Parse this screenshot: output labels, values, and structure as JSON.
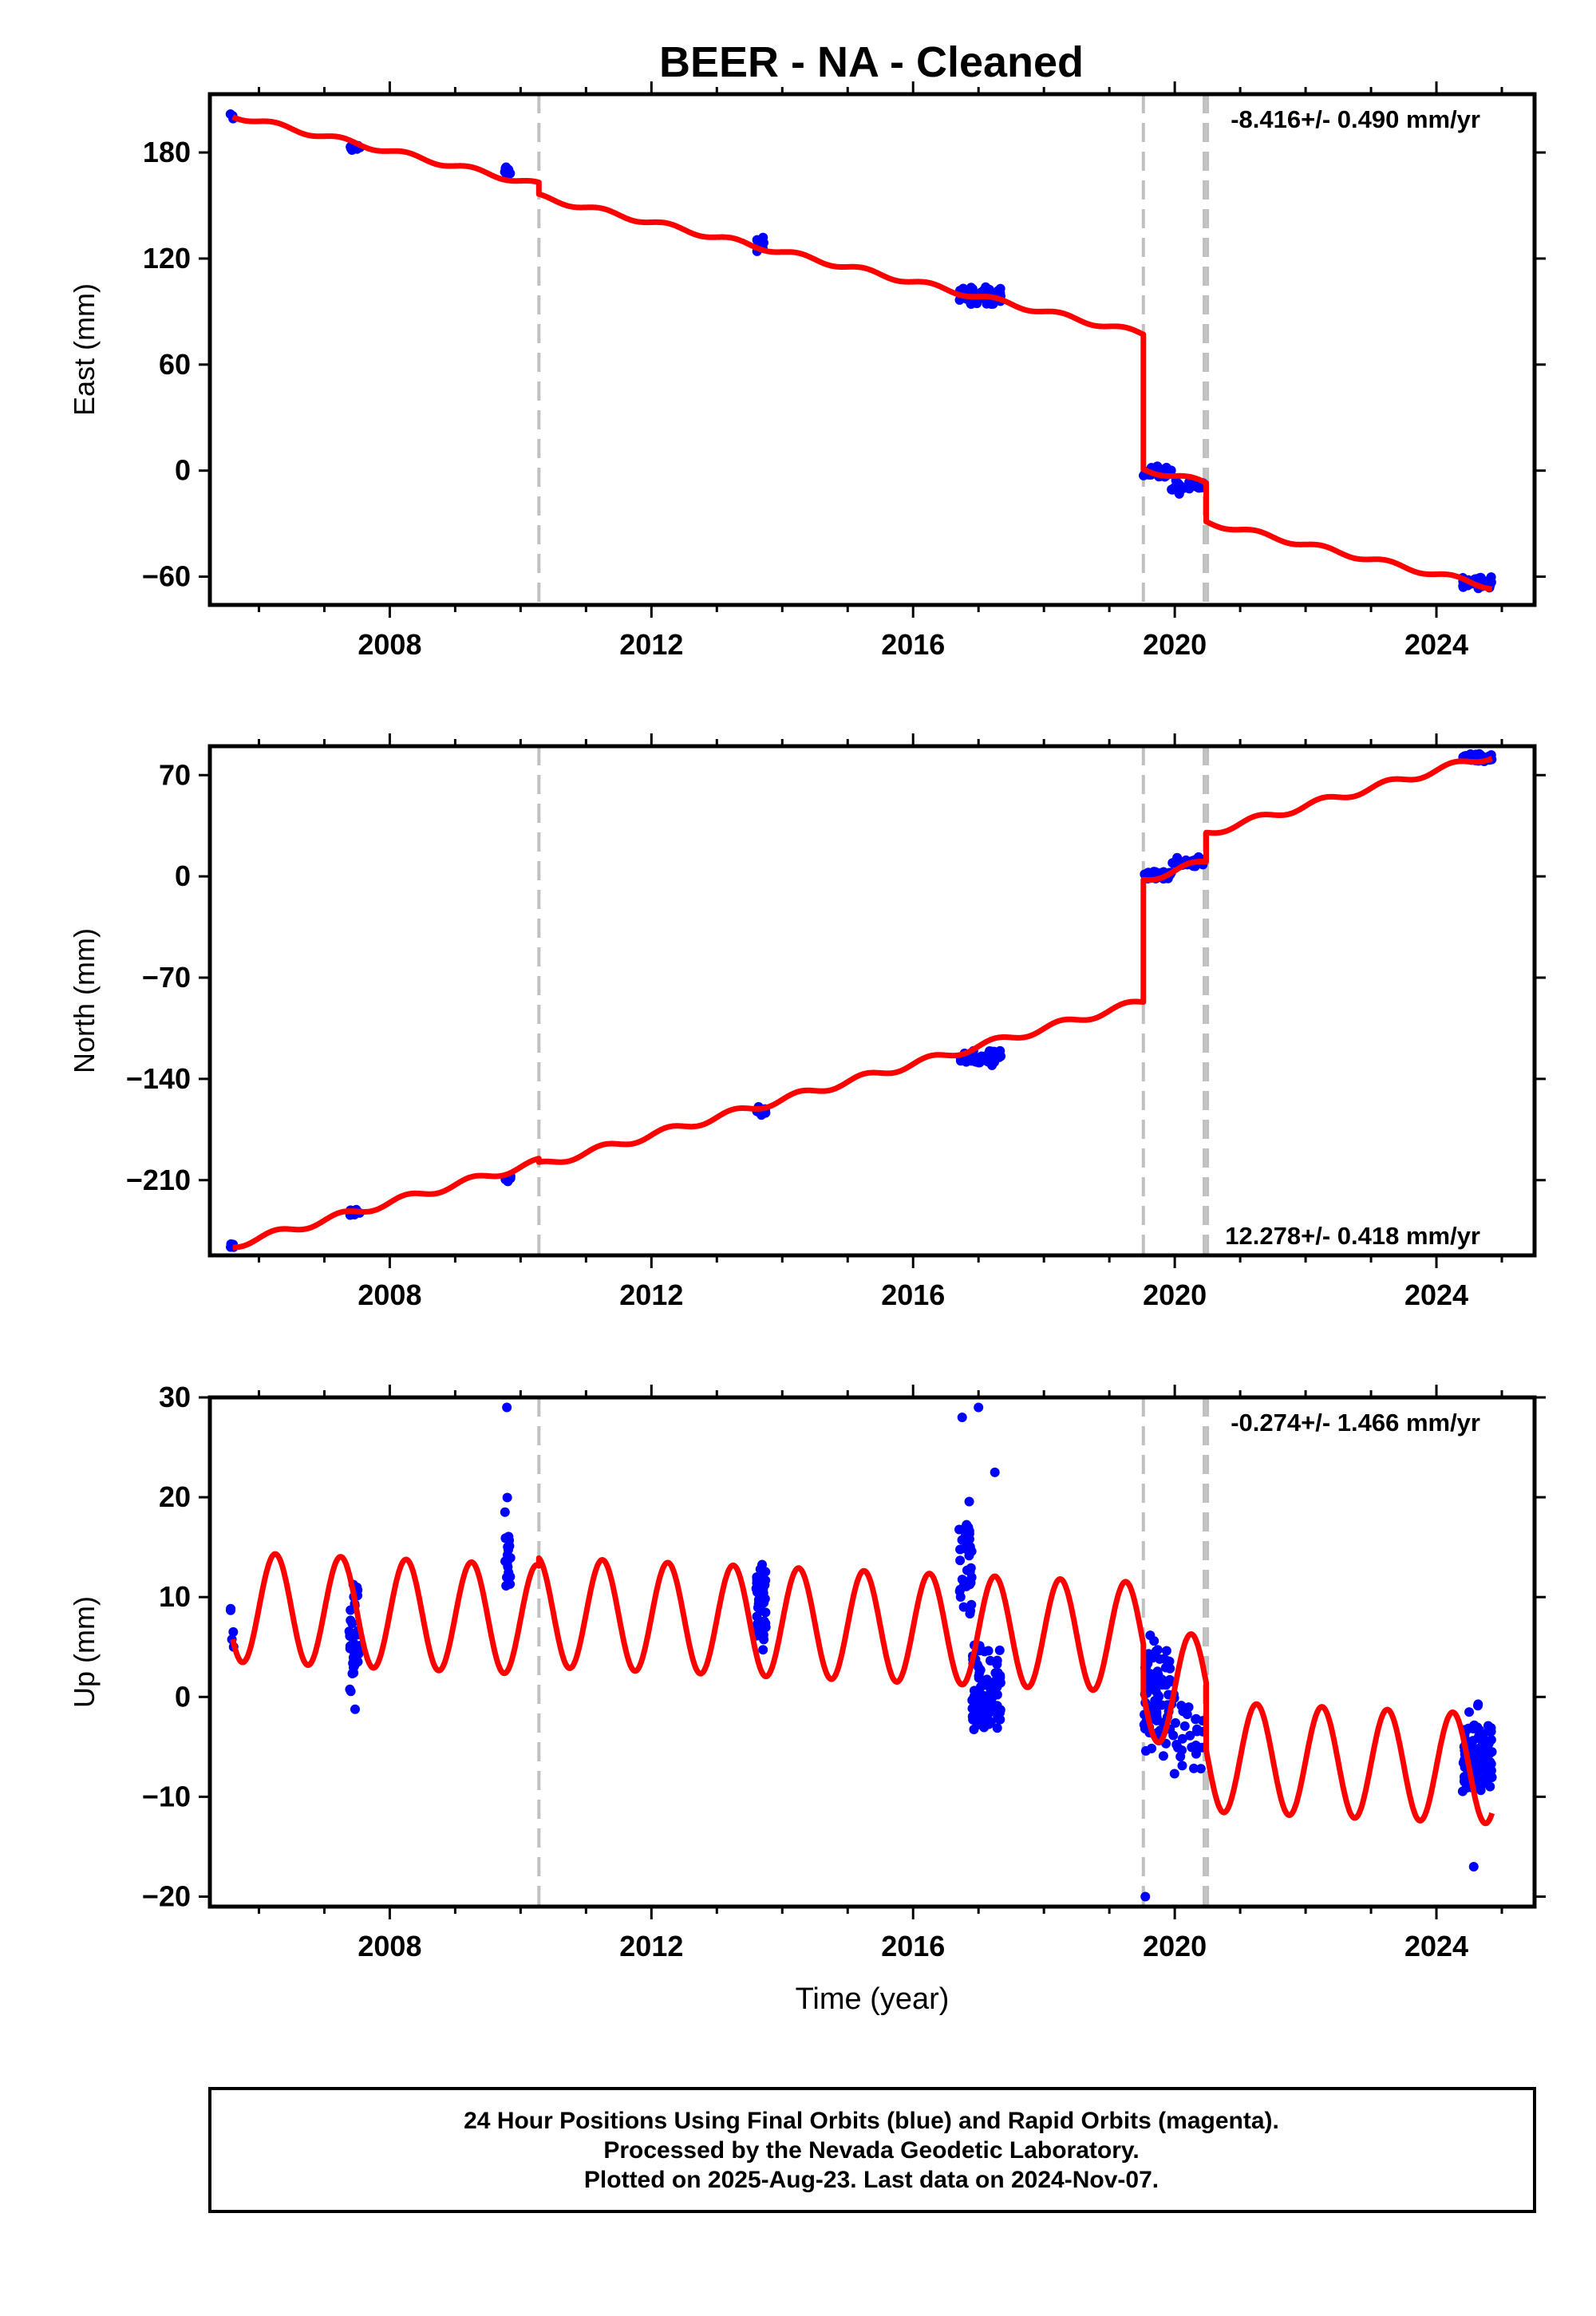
{
  "title": "BEER  - NA - Cleaned",
  "footer": {
    "line1": "24 Hour Positions Using Final Orbits (blue) and Rapid Orbits (magenta).",
    "line2": "Processed by the Nevada Geodetic Laboratory.",
    "line3": "Plotted on 2025-Aug-23. Last data on 2024-Nov-07."
  },
  "colors": {
    "data_points": "#0000ff",
    "model_line": "#ff0000",
    "event_lines": "#c0c0c0",
    "frame": "#000000"
  },
  "chart_data": [
    {
      "type": "scatter",
      "panel": "east",
      "ylabel": "East (mm)",
      "xlabel": "",
      "rate_label": "-8.416+/- 0.490 mm/yr",
      "rate_position": "top-right",
      "xlim": [
        2005.25,
        2025.5
      ],
      "ylim": [
        -76,
        213
      ],
      "yticks": [
        -60,
        0,
        60,
        120,
        180
      ],
      "xticks": [
        2008,
        2012,
        2016,
        2020,
        2024
      ],
      "event_lines": [
        2010.28,
        2019.52,
        2020.45,
        2020.5
      ],
      "model": {
        "segments": [
          {
            "t0": 2005.6,
            "t1": 2010.28,
            "y0": 201,
            "rate": -8.416
          },
          {
            "t0": 2010.28,
            "t1": 2019.52,
            "y0": 155,
            "rate": -8.416
          },
          {
            "t0": 2019.52,
            "t1": 2020.48,
            "y0": 1,
            "rate": -8.416
          },
          {
            "t0": 2020.48,
            "t1": 2024.85,
            "y0": -29,
            "rate": -8.416
          }
        ],
        "amplitude": 1.5,
        "phase": 0.0
      },
      "points": {
        "clusters": [
          {
            "t0": 2005.55,
            "t1": 2005.62,
            "mean": 200,
            "spread": 1.5,
            "n": 5
          },
          {
            "t0": 2007.38,
            "t1": 2007.55,
            "mean": 183,
            "spread": 2,
            "n": 14
          },
          {
            "t0": 2009.75,
            "t1": 2009.85,
            "mean": 169,
            "spread": 3,
            "n": 10
          },
          {
            "t0": 2013.6,
            "t1": 2013.75,
            "mean": 128,
            "spread": 3,
            "n": 16
          },
          {
            "t0": 2016.7,
            "t1": 2017.35,
            "mean": 99,
            "spread": 4,
            "n": 60
          },
          {
            "t0": 2019.52,
            "t1": 2019.95,
            "mean": -1,
            "spread": 2.5,
            "n": 45
          },
          {
            "t0": 2019.95,
            "t1": 2020.45,
            "mean": -9,
            "spread": 3,
            "n": 30
          },
          {
            "t0": 2024.4,
            "t1": 2024.85,
            "mean": -63,
            "spread": 2.5,
            "n": 70
          }
        ]
      }
    },
    {
      "type": "scatter",
      "panel": "north",
      "ylabel": "North (mm)",
      "xlabel": "",
      "rate_label": "12.278+/- 0.418 mm/yr",
      "rate_position": "bottom-right",
      "xlim": [
        2005.25,
        2025.5
      ],
      "ylim": [
        -262,
        90
      ],
      "yticks": [
        -210,
        -140,
        -70,
        0,
        70
      ],
      "xticks": [
        2008,
        2012,
        2016,
        2020,
        2024
      ],
      "event_lines": [
        2010.28,
        2019.52,
        2020.45,
        2020.5
      ],
      "model": {
        "segments": [
          {
            "t0": 2005.6,
            "t1": 2010.28,
            "y0": -255,
            "rate": 12.278
          },
          {
            "t0": 2010.28,
            "t1": 2019.52,
            "y0": -200,
            "rate": 12.278
          },
          {
            "t0": 2019.52,
            "t1": 2020.48,
            "y0": -2,
            "rate": 12.278
          },
          {
            "t0": 2020.48,
            "t1": 2024.85,
            "y0": 30,
            "rate": 12.278
          }
        ],
        "amplitude": 2.5,
        "phase": 0.0
      },
      "points": {
        "clusters": [
          {
            "t0": 2005.55,
            "t1": 2005.62,
            "mean": -255,
            "spread": 1.5,
            "n": 5
          },
          {
            "t0": 2007.38,
            "t1": 2007.55,
            "mean": -232,
            "spread": 2,
            "n": 14
          },
          {
            "t0": 2009.75,
            "t1": 2009.85,
            "mean": -209,
            "spread": 2,
            "n": 10
          },
          {
            "t0": 2013.6,
            "t1": 2013.75,
            "mean": -162,
            "spread": 2,
            "n": 16
          },
          {
            "t0": 2016.7,
            "t1": 2017.35,
            "mean": -125,
            "spread": 4,
            "n": 60
          },
          {
            "t0": 2019.52,
            "t1": 2019.95,
            "mean": 1,
            "spread": 2,
            "n": 45
          },
          {
            "t0": 2019.95,
            "t1": 2020.45,
            "mean": 10,
            "spread": 2.5,
            "n": 30
          },
          {
            "t0": 2024.4,
            "t1": 2024.85,
            "mean": 82,
            "spread": 2,
            "n": 70
          }
        ]
      }
    },
    {
      "type": "scatter",
      "panel": "up",
      "ylabel": "Up (mm)",
      "xlabel": "Time (year)",
      "rate_label": "-0.274+/- 1.466 mm/yr",
      "rate_position": "top-right",
      "xlim": [
        2005.25,
        2025.5
      ],
      "ylim": [
        -21,
        30
      ],
      "yticks": [
        -20,
        -10,
        0,
        10,
        20,
        30
      ],
      "xticks": [
        2008,
        2012,
        2016,
        2020,
        2024
      ],
      "event_lines": [
        2010.28,
        2019.52,
        2020.45,
        2020.5
      ],
      "model": {
        "segments": [
          {
            "t0": 2005.6,
            "t1": 2010.28,
            "y0": 9,
            "rate": -0.274
          },
          {
            "t0": 2010.28,
            "t1": 2019.52,
            "y0": 8.5,
            "rate": -0.274
          },
          {
            "t0": 2019.52,
            "t1": 2020.48,
            "y0": 1,
            "rate": -0.274
          },
          {
            "t0": 2020.48,
            "t1": 2024.85,
            "y0": -6,
            "rate": -0.274
          }
        ],
        "amplitude": 5.5,
        "phase": 0.0
      },
      "points": {
        "clusters": [
          {
            "t0": 2005.55,
            "t1": 2005.62,
            "mean": 10,
            "spread": 4,
            "n": 5
          },
          {
            "t0": 2007.38,
            "t1": 2007.55,
            "mean": 5,
            "spread": 5,
            "n": 40
          },
          {
            "t0": 2009.75,
            "t1": 2009.85,
            "mean": 14,
            "spread": 4,
            "n": 18
          },
          {
            "t0": 2013.6,
            "t1": 2013.75,
            "mean": 9,
            "spread": 4,
            "n": 40
          },
          {
            "t0": 2016.7,
            "t1": 2016.9,
            "mean": 13,
            "spread": 5,
            "n": 35
          },
          {
            "t0": 2016.9,
            "t1": 2017.35,
            "mean": 0,
            "spread": 4,
            "n": 90
          },
          {
            "t0": 2019.52,
            "t1": 2019.95,
            "mean": 0,
            "spread": 5,
            "n": 90
          },
          {
            "t0": 2019.95,
            "t1": 2020.45,
            "mean": -4,
            "spread": 4,
            "n": 30
          },
          {
            "t0": 2024.4,
            "t1": 2024.85,
            "mean": -6,
            "spread": 3.5,
            "n": 120
          }
        ],
        "extremes": [
          {
            "t": 2009.79,
            "y": 29
          },
          {
            "t": 2016.75,
            "y": 28
          },
          {
            "t": 2017.0,
            "y": 29
          },
          {
            "t": 2017.25,
            "y": 22.5
          },
          {
            "t": 2019.55,
            "y": -20
          },
          {
            "t": 2024.57,
            "y": -17
          }
        ]
      }
    }
  ]
}
